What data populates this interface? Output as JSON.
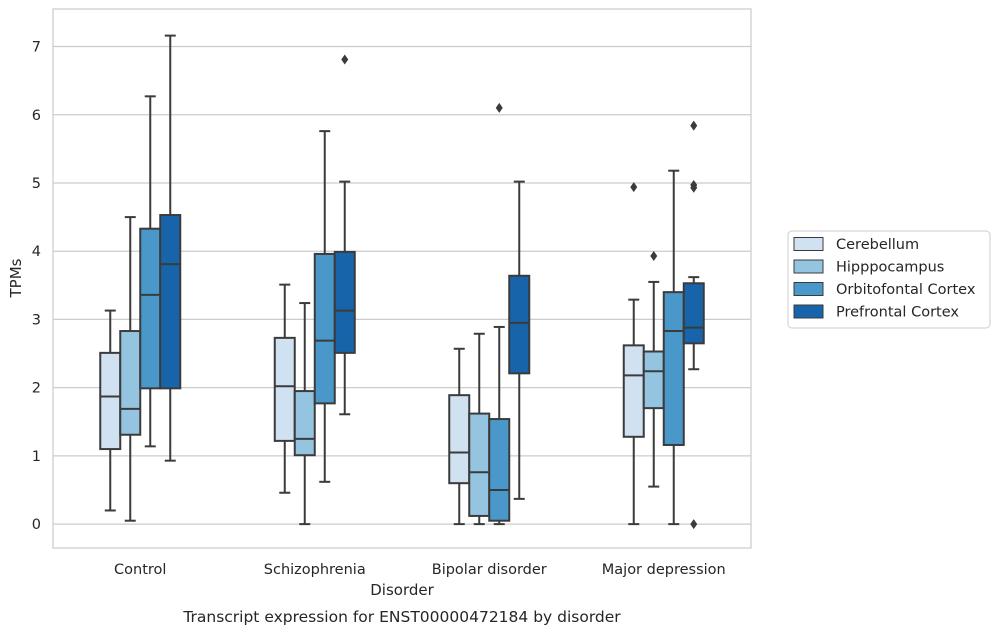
{
  "chart_data": {
    "type": "box",
    "title": "Transcript expression for ENST00000472184 by disorder",
    "xlabel": "Disorder",
    "ylabel": "TPMs",
    "ylim": [
      -0.35,
      7.55
    ],
    "yticks": [
      0,
      1,
      2,
      3,
      4,
      5,
      6,
      7
    ],
    "grid": "y",
    "legend_position": "right",
    "categories": [
      "Control",
      "Schizophrenia",
      "Bipolar disorder",
      "Major depression"
    ],
    "series": [
      {
        "name": "Cerebellum",
        "color": "#d0e1f2",
        "boxes": [
          {
            "whisker_low": 0.2,
            "q1": 1.1,
            "median": 1.87,
            "q3": 2.51,
            "whisker_high": 3.13,
            "outliers": []
          },
          {
            "whisker_low": 0.46,
            "q1": 1.22,
            "median": 2.02,
            "q3": 2.73,
            "whisker_high": 3.51,
            "outliers": []
          },
          {
            "whisker_low": 0.0,
            "q1": 0.6,
            "median": 1.05,
            "q3": 1.89,
            "whisker_high": 2.57,
            "outliers": []
          },
          {
            "whisker_low": 0.0,
            "q1": 1.28,
            "median": 2.18,
            "q3": 2.62,
            "whisker_high": 3.29,
            "outliers": [
              4.94
            ]
          }
        ]
      },
      {
        "name": "Hipppocampus",
        "color": "#94c4df",
        "boxes": [
          {
            "whisker_low": 0.05,
            "q1": 1.31,
            "median": 1.69,
            "q3": 2.83,
            "whisker_high": 4.5,
            "outliers": []
          },
          {
            "whisker_low": 0.0,
            "q1": 1.01,
            "median": 1.25,
            "q3": 1.95,
            "whisker_high": 3.24,
            "outliers": []
          },
          {
            "whisker_low": 0.0,
            "q1": 0.12,
            "median": 0.76,
            "q3": 1.62,
            "whisker_high": 2.79,
            "outliers": []
          },
          {
            "whisker_low": 0.55,
            "q1": 1.7,
            "median": 2.24,
            "q3": 2.53,
            "whisker_high": 3.55,
            "outliers": [
              3.93
            ]
          }
        ]
      },
      {
        "name": "Orbitofontal Cortex",
        "color": "#4a98c9",
        "boxes": [
          {
            "whisker_low": 1.14,
            "q1": 1.99,
            "median": 3.36,
            "q3": 4.33,
            "whisker_high": 6.27,
            "outliers": []
          },
          {
            "whisker_low": 0.62,
            "q1": 1.77,
            "median": 2.69,
            "q3": 3.96,
            "whisker_high": 5.76,
            "outliers": []
          },
          {
            "whisker_low": 0.0,
            "q1": 0.05,
            "median": 0.5,
            "q3": 1.54,
            "whisker_high": 2.89,
            "outliers": [
              6.1
            ]
          },
          {
            "whisker_low": 0.0,
            "q1": 1.16,
            "median": 2.83,
            "q3": 3.4,
            "whisker_high": 5.18,
            "outliers": []
          }
        ]
      },
      {
        "name": "Prefrontal Cortex",
        "color": "#1764ab",
        "boxes": [
          {
            "whisker_low": 0.93,
            "q1": 1.99,
            "median": 3.81,
            "q3": 4.53,
            "whisker_high": 7.16,
            "outliers": []
          },
          {
            "whisker_low": 1.61,
            "q1": 2.51,
            "median": 3.13,
            "q3": 3.99,
            "whisker_high": 5.02,
            "outliers": [
              6.81
            ]
          },
          {
            "whisker_low": 0.37,
            "q1": 2.21,
            "median": 2.95,
            "q3": 3.64,
            "whisker_high": 5.02,
            "outliers": []
          },
          {
            "whisker_low": 2.27,
            "q1": 2.65,
            "median": 2.88,
            "q3": 3.53,
            "whisker_high": 3.62,
            "outliers": [
              5.84,
              4.97,
              4.93,
              0.0
            ]
          }
        ]
      }
    ]
  }
}
